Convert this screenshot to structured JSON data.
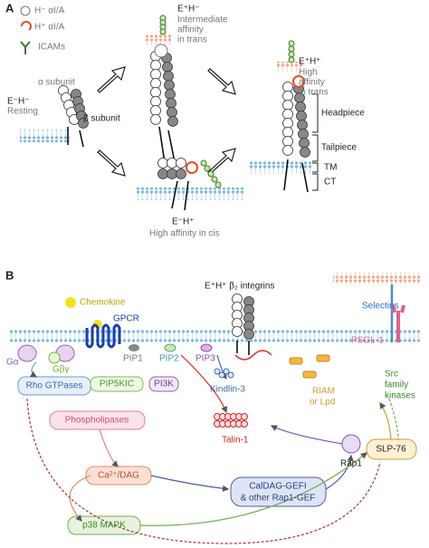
{
  "panel_a": {
    "label": "A",
    "legend": [
      {
        "label": "H⁻ αI/A"
      },
      {
        "label": "H⁺ αI/A"
      },
      {
        "label": "ICAMs"
      }
    ],
    "alpha_subunit": "α subunit",
    "beta_subunit": "β subunit",
    "states": [
      {
        "name": "E⁻H⁻",
        "desc": [
          "Resting"
        ]
      },
      {
        "name": "E⁺H⁻",
        "desc": [
          "Intermediate",
          "affinity",
          "in trans"
        ]
      },
      {
        "name": "E⁻H⁺",
        "desc": [
          "High affinity in cis"
        ]
      },
      {
        "name": "E⁺H⁺",
        "desc": [
          "High",
          "affinity",
          "in trans"
        ]
      }
    ],
    "domains": [
      "Headpiece",
      "Tailpiece",
      "TM",
      "CT"
    ]
  },
  "panel_b": {
    "label": "B",
    "chemokine": "Chemokine",
    "gpcr": "GPCR",
    "integrins": "E⁺H⁺ β₂ integrins",
    "selectins": "Selectins",
    "psgl1": "PSGL-1",
    "g_alpha": "Gα",
    "g_beta_gamma": "Gβγ",
    "pip1": "PIP1",
    "pip2": "PIP2",
    "pip3": "PIP3",
    "rho_gtpases": "Rho GTPases",
    "pip5kic": "PIP5KIC",
    "pi3k": "PI3K",
    "kindlin3": "Kindlin-3",
    "phospholipases": "Phospholipases",
    "riam": [
      "RIAM",
      "or Lpd"
    ],
    "talin1": "Talin-1",
    "src": [
      "Src",
      "family",
      "kinases"
    ],
    "rap1": "Rap1",
    "slp76": "SLP-76",
    "ca_dag": "Ca²⁺/DAG",
    "caldag": [
      "CalDAG-GEFI",
      "& other Rap1-GEF"
    ],
    "p38": "p38 MAPK"
  }
}
